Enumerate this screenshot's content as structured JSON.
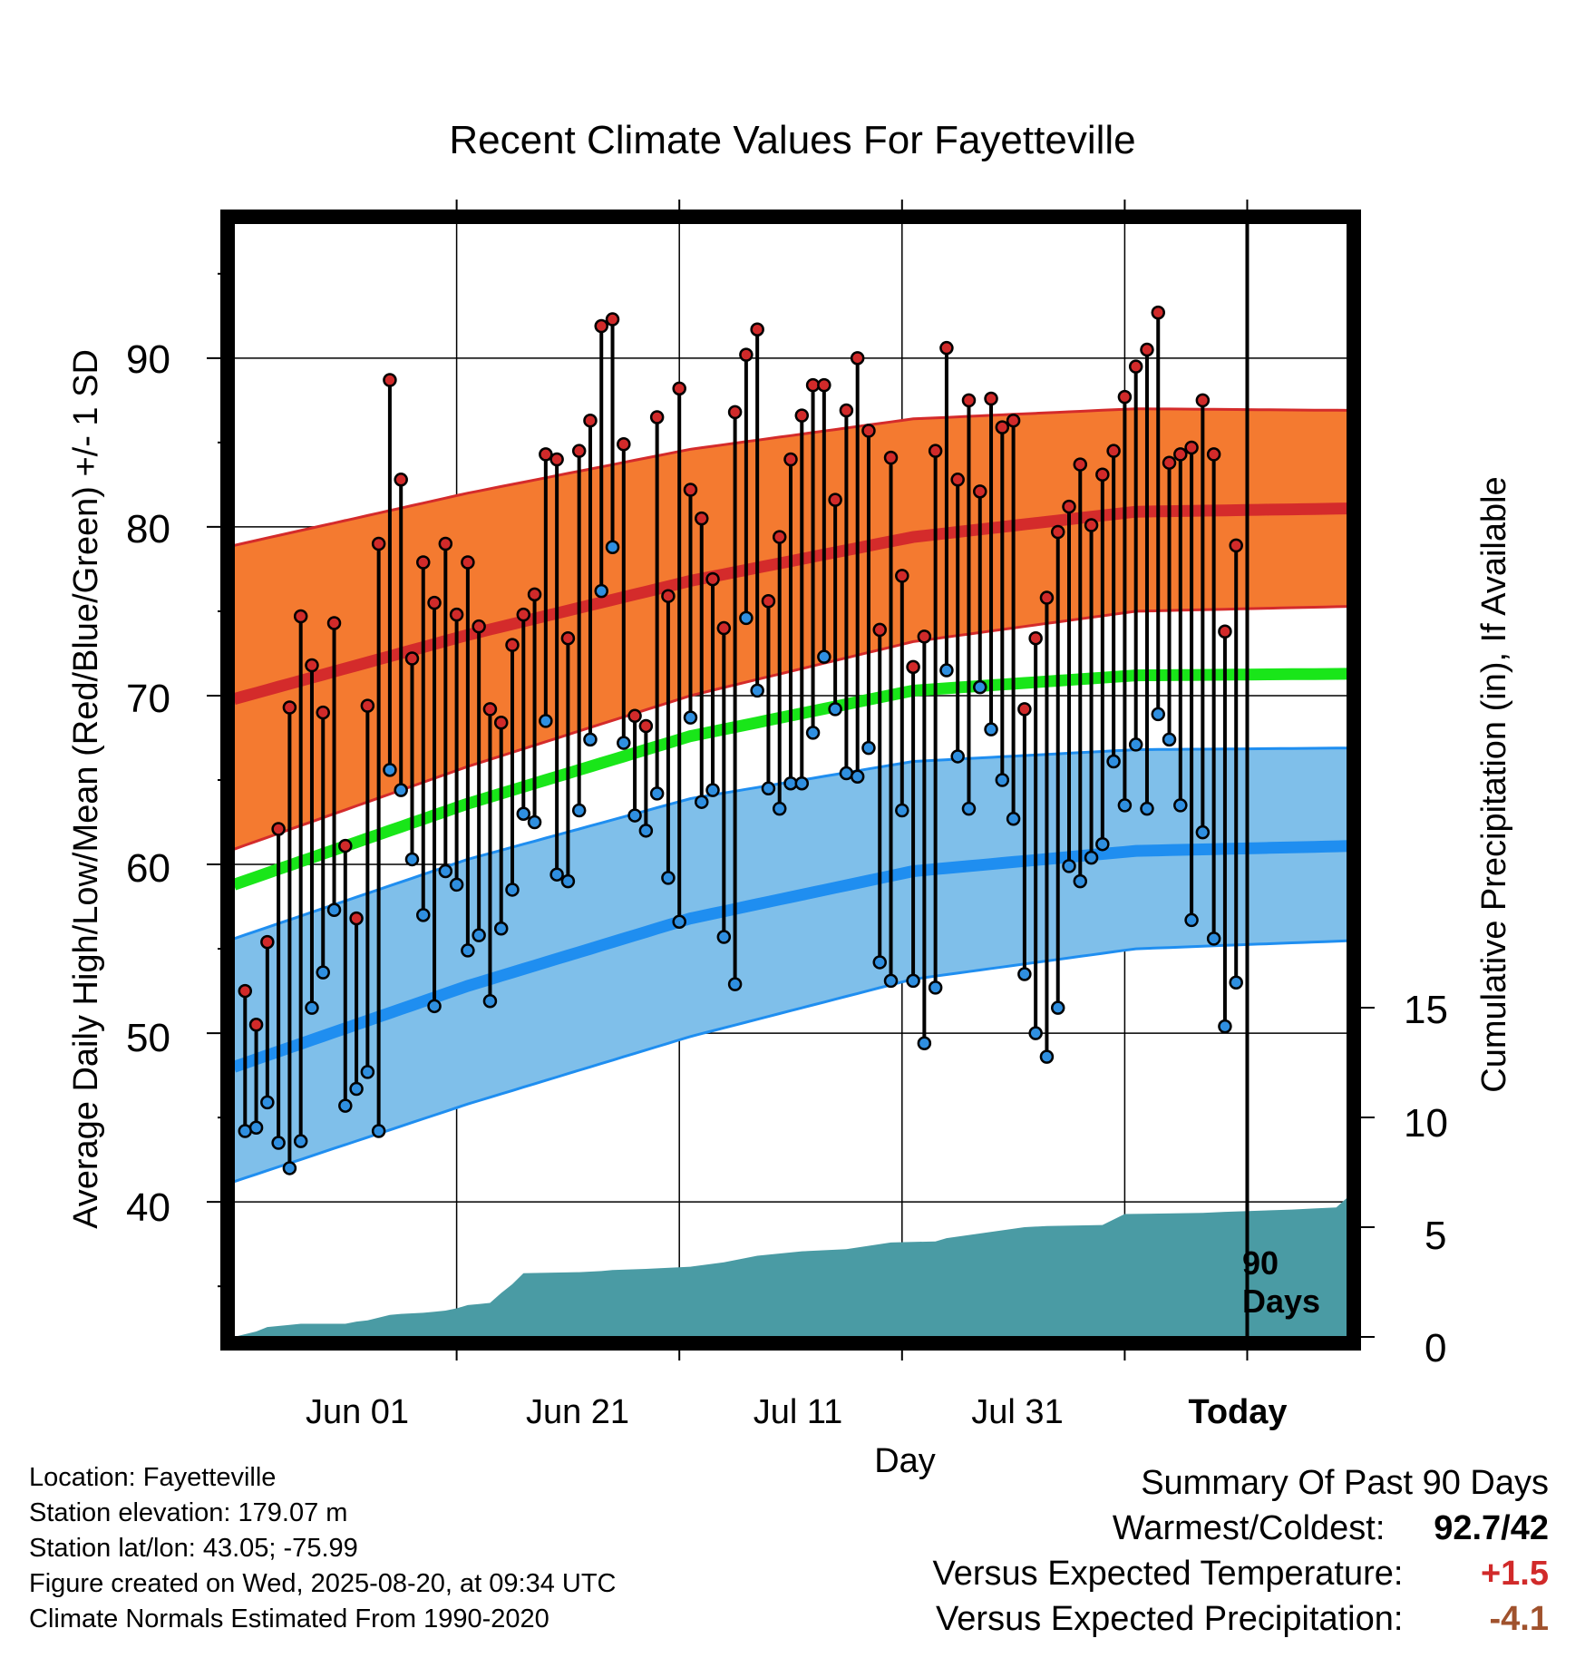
{
  "chart_data": {
    "type": "line",
    "title": "Recent Climate Values For Fayetteville",
    "xlabel": "Day",
    "ylabel_left": "Average Daily High/Low/Mean (Red/Blue/Green) +/- 1 SD",
    "ylabel_right": "Cumulative Precipitation (in), If Available",
    "x_ticks": [
      "Jun 01",
      "Jun 21",
      "Jul 11",
      "Jul 31",
      "Today"
    ],
    "y_left_ticks": [
      "40",
      "50",
      "60",
      "70",
      "80",
      "90"
    ],
    "y_right_ticks": [
      "0",
      "5",
      "10",
      "15"
    ],
    "ylim_left": [
      32,
      98
    ],
    "ylim_right": [
      0,
      15
    ],
    "xlim_days_relative_to_today": [
      -91,
      9
    ],
    "grid": true,
    "period_label": "90 Days",
    "normals": {
      "high_mean": {
        "day": [
          -91,
          -70,
          -50,
          -30,
          -10,
          10,
          30,
          50,
          60,
          70,
          80,
          91
        ],
        "value": [
          69.8,
          73.6,
          76.8,
          79.4,
          80.9,
          81.1,
          80.9,
          80.0,
          79.3,
          78.4,
          77.2,
          76.0
        ]
      },
      "high_upper": {
        "day": [
          -91,
          -70,
          -50,
          -30,
          -10,
          10,
          30,
          50,
          60,
          70,
          80,
          91
        ],
        "value": [
          78.9,
          82.0,
          84.6,
          86.4,
          87.0,
          86.9,
          86.5,
          85.6,
          84.9,
          84.1,
          83.2,
          82.2
        ]
      },
      "high_lower": {
        "day": [
          -91,
          -70,
          -50,
          -30,
          -10,
          10,
          30,
          50,
          60,
          70,
          80,
          91
        ],
        "value": [
          60.9,
          65.8,
          70.0,
          73.2,
          75.0,
          75.3,
          75.1,
          74.3,
          73.6,
          72.7,
          71.6,
          70.3
        ]
      },
      "mean": {
        "day": [
          -91,
          -70,
          -50,
          -30,
          -10,
          10,
          30,
          50,
          60,
          70,
          80,
          91
        ],
        "value": [
          58.8,
          63.6,
          67.6,
          70.3,
          71.2,
          71.3,
          71.1,
          70.2,
          69.4,
          68.5,
          67.3,
          66.0
        ]
      },
      "low_mean": {
        "day": [
          -91,
          -70,
          -50,
          -30,
          -10,
          10,
          30,
          50,
          60,
          70,
          80,
          91
        ],
        "value": [
          48.0,
          52.8,
          56.8,
          59.6,
          60.8,
          61.1,
          60.9,
          59.9,
          59.0,
          57.9,
          56.7,
          55.3
        ]
      },
      "low_upper": {
        "day": [
          -91,
          -70,
          -50,
          -30,
          -10,
          10,
          30,
          50,
          60,
          70,
          80,
          91
        ],
        "value": [
          55.6,
          60.3,
          63.9,
          66.1,
          66.8,
          66.9,
          66.7,
          66.1,
          65.4,
          64.6,
          63.7,
          62.7
        ]
      },
      "low_lower": {
        "day": [
          -91,
          -70,
          -50,
          -30,
          -10,
          10,
          30,
          50,
          60,
          70,
          80,
          91
        ],
        "value": [
          41.2,
          45.8,
          49.8,
          53.2,
          55.0,
          55.5,
          55.3,
          54.5,
          53.6,
          52.5,
          51.2,
          49.8
        ]
      }
    },
    "daily_high": [
      52.5,
      50.5,
      55.4,
      62.1,
      69.3,
      74.7,
      71.8,
      69.0,
      74.3,
      61.1,
      56.8,
      69.4,
      79.0,
      88.7,
      82.8,
      72.2,
      77.9,
      75.5,
      79.0,
      74.8,
      77.9,
      74.1,
      69.2,
      68.4,
      73.0,
      74.8,
      76.0,
      84.3,
      84.0,
      73.4,
      84.5,
      86.3,
      91.9,
      92.3,
      84.9,
      68.8,
      68.2,
      86.5,
      75.9,
      88.2,
      82.2,
      80.5,
      76.9,
      74.0,
      86.8,
      90.2,
      91.7,
      75.6,
      79.4,
      84.0,
      86.6,
      88.4,
      88.4,
      81.6,
      86.9,
      90.0,
      85.7,
      73.9,
      84.1,
      77.1,
      71.7,
      73.5,
      84.5,
      90.6,
      82.8,
      87.5,
      82.1,
      87.6,
      85.9,
      86.3,
      69.2,
      73.4,
      75.8,
      79.7,
      81.2,
      83.7,
      80.1,
      83.1,
      84.5,
      87.7,
      89.5,
      90.5,
      92.7,
      83.8,
      84.3,
      84.7,
      87.5,
      84.3,
      73.8,
      78.9
    ],
    "daily_low": [
      44.2,
      44.4,
      45.9,
      43.5,
      42.0,
      43.6,
      51.5,
      53.6,
      57.3,
      45.7,
      46.7,
      47.7,
      44.2,
      65.6,
      64.4,
      60.3,
      57.0,
      51.6,
      59.6,
      58.8,
      54.9,
      55.8,
      51.9,
      56.2,
      58.5,
      63.0,
      62.5,
      68.5,
      59.4,
      59.0,
      63.2,
      67.4,
      76.2,
      78.8,
      67.2,
      62.9,
      62.0,
      64.2,
      59.2,
      56.6,
      68.7,
      63.7,
      64.4,
      55.7,
      52.9,
      74.6,
      70.3,
      64.5,
      63.3,
      64.8,
      64.8,
      67.8,
      72.3,
      69.2,
      65.4,
      65.2,
      66.9,
      54.2,
      53.1,
      63.2,
      53.1,
      49.4,
      52.7,
      71.5,
      66.4,
      63.3,
      70.5,
      68.0,
      65.0,
      62.7,
      53.5,
      50.0,
      48.6,
      51.5,
      59.9,
      59.0,
      60.4,
      61.2,
      66.1,
      63.5,
      67.1,
      63.3,
      68.9,
      67.4,
      63.5,
      56.7,
      61.9,
      55.6,
      50.4,
      53.0
    ],
    "cumulative_precip": {
      "day": [
        -91,
        -89,
        -88,
        -86,
        -85,
        -81,
        -80,
        -79,
        -77,
        -76,
        -74,
        -73,
        -72,
        -71,
        -70,
        -69,
        -68,
        -67,
        -66,
        -65,
        -60,
        -58,
        -57,
        -54,
        -50,
        -47,
        -44,
        -40,
        -36,
        -32,
        -28,
        -27,
        -20,
        -18,
        -13,
        -11,
        -4,
        -2,
        4,
        6,
        8,
        10,
        15,
        20,
        22,
        24,
        26,
        28,
        30,
        33,
        35,
        37,
        40,
        42,
        50,
        60,
        70,
        80,
        90,
        91
      ],
      "value": [
        0.0,
        0.25,
        0.45,
        0.55,
        0.6,
        0.6,
        0.7,
        0.75,
        1.0,
        1.05,
        1.1,
        1.15,
        1.2,
        1.3,
        1.45,
        1.5,
        1.55,
        2.0,
        2.4,
        2.9,
        2.95,
        3.0,
        3.05,
        3.1,
        3.2,
        3.4,
        3.7,
        3.9,
        4.0,
        4.3,
        4.35,
        4.5,
        5.0,
        5.05,
        5.1,
        5.6,
        5.65,
        5.7,
        5.8,
        5.85,
        5.9,
        6.8,
        6.95,
        7.0,
        7.3,
        7.35,
        7.4,
        7.45,
        7.5,
        7.6,
        7.65,
        7.7,
        7.75,
        7.8,
        7.85,
        7.9,
        7.95,
        8.0,
        8.0,
        8.0
      ]
    },
    "colors": {
      "high_band": "#f47a30",
      "high_line": "#d42b2b",
      "low_band": "#7fbfea",
      "low_line": "#1f8ef0",
      "mean_line": "#19e619",
      "precip": "#4a9ba4",
      "high_dot": "#d12a2a",
      "low_dot": "#2f8fe0"
    }
  },
  "info": {
    "location": "Location: Fayetteville",
    "elevation": "Station elevation: 179.07 m",
    "latlon": "Station lat/lon: 43.05; -75.99",
    "created": "Figure created on Wed, 2025-08-20, at 09:34 UTC",
    "normals": "Climate Normals Estimated From 1990-2020"
  },
  "summary": {
    "heading": "Summary Of Past 90 Days",
    "warm_cold_label": "Warmest/Coldest:",
    "warm_value": "92.7",
    "cold_value": "42",
    "temp_label": "Versus Expected Temperature:",
    "temp_value": "+1.5",
    "temp_color": "#d12a2a",
    "precip_label": "Versus Expected Precipitation:",
    "precip_value": "-4.1",
    "precip_color": "#a0522d"
  }
}
